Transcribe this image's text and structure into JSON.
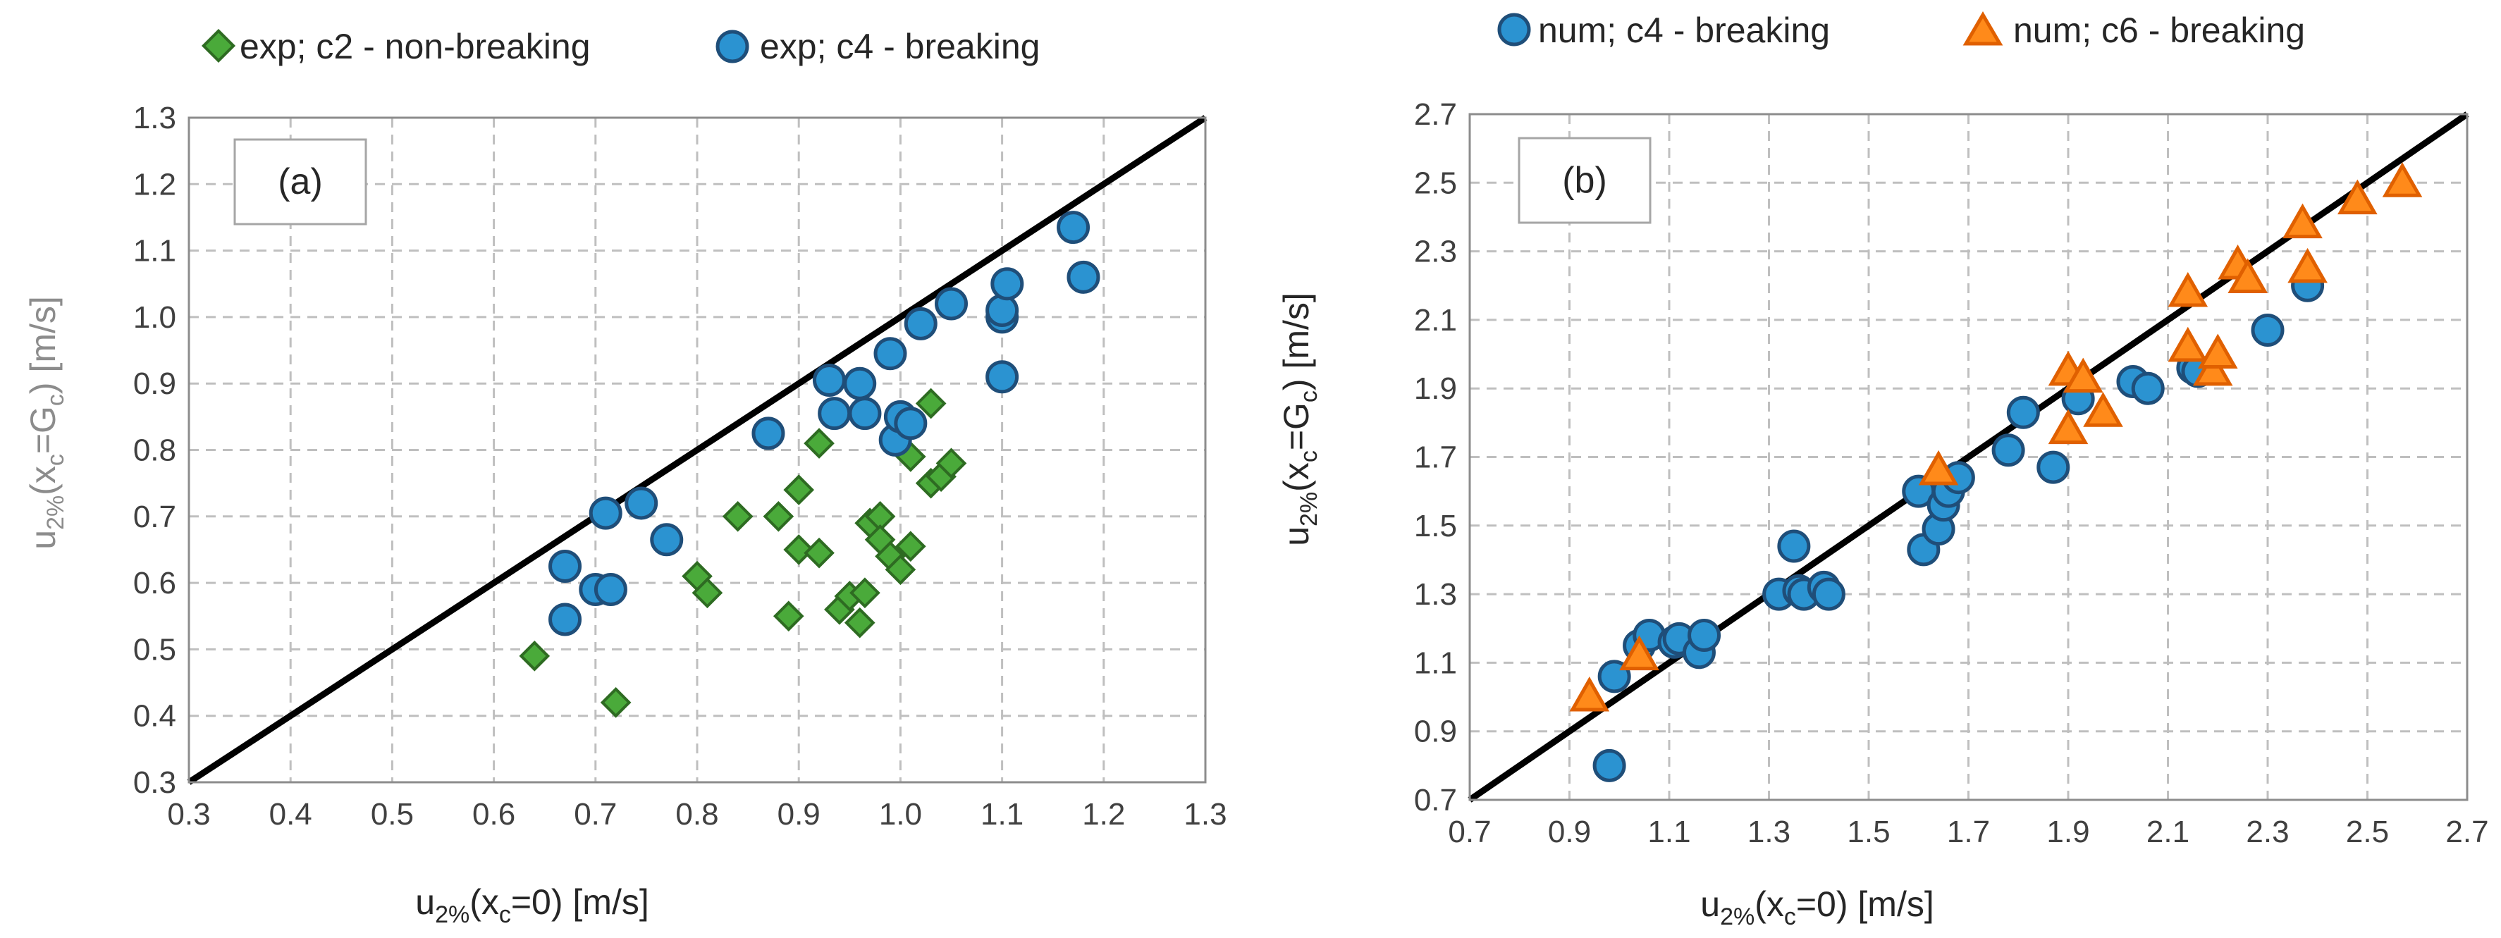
{
  "chart_data": [
    {
      "type": "scatter",
      "panel_label": "(a)",
      "xlabel": {
        "base": "u",
        "sub": "2%",
        "rest": "(x",
        "sub2": "c",
        "tail": "=0)  [m/s]"
      },
      "ylabel": {
        "base": "u",
        "sub": "2%",
        "rest": "(x",
        "sub2": "c",
        "tail": "=G",
        "sub3": "c",
        "end": ")  [m/s]"
      },
      "xlim": [
        0.3,
        1.3
      ],
      "ylim": [
        0.3,
        1.3
      ],
      "xticks": [
        "0.3",
        "0.4",
        "0.5",
        "0.6",
        "0.7",
        "0.8",
        "0.9",
        "1.0",
        "1.1",
        "1.2",
        "1.3"
      ],
      "yticks": [
        "0.3",
        "0.4",
        "0.5",
        "0.6",
        "0.7",
        "0.8",
        "0.9",
        "1.0",
        "1.1",
        "1.2",
        "1.3"
      ],
      "grid": true,
      "reference_line": "y = x",
      "legend_position": "top",
      "series": [
        {
          "name": "exp; c2 - non-breaking",
          "marker": "diamond",
          "color": "#4aaa3a",
          "edge": "#2e6b22",
          "points": [
            [
              0.64,
              0.49
            ],
            [
              0.72,
              0.42
            ],
            [
              0.8,
              0.61
            ],
            [
              0.81,
              0.585
            ],
            [
              0.84,
              0.7
            ],
            [
              0.88,
              0.7
            ],
            [
              0.89,
              0.55
            ],
            [
              0.9,
              0.65
            ],
            [
              0.9,
              0.74
            ],
            [
              0.92,
              0.645
            ],
            [
              0.92,
              0.81
            ],
            [
              0.94,
              0.56
            ],
            [
              0.95,
              0.58
            ],
            [
              0.96,
              0.54
            ],
            [
              0.965,
              0.585
            ],
            [
              0.97,
              0.69
            ],
            [
              0.98,
              0.7
            ],
            [
              0.98,
              0.665
            ],
            [
              0.99,
              0.64
            ],
            [
              1.0,
              0.62
            ],
            [
              1.01,
              0.79
            ],
            [
              1.01,
              0.655
            ],
            [
              1.03,
              0.87
            ],
            [
              1.03,
              0.75
            ],
            [
              1.04,
              0.76
            ],
            [
              1.05,
              0.78
            ]
          ]
        },
        {
          "name": "exp; c4 - breaking",
          "marker": "circle",
          "color": "#2b93d1",
          "edge": "#1f4e79",
          "points": [
            [
              0.67,
              0.625
            ],
            [
              0.67,
              0.545
            ],
            [
              0.7,
              0.59
            ],
            [
              0.71,
              0.705
            ],
            [
              0.715,
              0.59
            ],
            [
              0.745,
              0.72
            ],
            [
              0.77,
              0.665
            ],
            [
              0.87,
              0.825
            ],
            [
              0.93,
              0.905
            ],
            [
              0.935,
              0.855
            ],
            [
              0.96,
              0.9
            ],
            [
              0.965,
              0.855
            ],
            [
              0.99,
              0.945
            ],
            [
              0.995,
              0.815
            ],
            [
              1.0,
              0.85
            ],
            [
              1.01,
              0.84
            ],
            [
              1.02,
              0.99
            ],
            [
              1.05,
              1.02
            ],
            [
              1.1,
              1.0
            ],
            [
              1.1,
              1.01
            ],
            [
              1.1,
              0.91
            ],
            [
              1.105,
              1.05
            ],
            [
              1.17,
              1.135
            ],
            [
              1.18,
              1.06
            ]
          ]
        }
      ]
    },
    {
      "type": "scatter",
      "panel_label": "(b)",
      "xlabel": {
        "base": "u",
        "sub": "2%",
        "rest": "(x",
        "sub2": "c",
        "tail": "=0)  [m/s]"
      },
      "ylabel": {
        "base": "u",
        "sub": "2%",
        "rest": "(x",
        "sub2": "c",
        "tail": "=G",
        "sub3": "c",
        "end": ")  [m/s]"
      },
      "xlim": [
        0.7,
        2.7
      ],
      "ylim": [
        0.7,
        2.7
      ],
      "xticks": [
        "0.7",
        "0.9",
        "1.1",
        "1.3",
        "1.5",
        "1.7",
        "1.9",
        "2.1",
        "2.3",
        "2.5",
        "2.7"
      ],
      "yticks": [
        "0.7",
        "0.9",
        "1.1",
        "1.3",
        "1.5",
        "1.7",
        "1.9",
        "2.1",
        "2.3",
        "2.5",
        "2.7"
      ],
      "grid": true,
      "reference_line": "y = x",
      "legend_position": "top",
      "series": [
        {
          "name": "num; c4 - breaking",
          "marker": "circle",
          "color": "#2b93d1",
          "edge": "#1f4e79",
          "points": [
            [
              0.98,
              0.8
            ],
            [
              0.99,
              1.06
            ],
            [
              1.04,
              1.15
            ],
            [
              1.06,
              1.18
            ],
            [
              1.11,
              1.16
            ],
            [
              1.12,
              1.17
            ],
            [
              1.16,
              1.13
            ],
            [
              1.17,
              1.18
            ],
            [
              1.32,
              1.3
            ],
            [
              1.35,
              1.44
            ],
            [
              1.36,
              1.31
            ],
            [
              1.37,
              1.3
            ],
            [
              1.41,
              1.32
            ],
            [
              1.42,
              1.3
            ],
            [
              1.6,
              1.6
            ],
            [
              1.61,
              1.43
            ],
            [
              1.64,
              1.49
            ],
            [
              1.65,
              1.56
            ],
            [
              1.66,
              1.6
            ],
            [
              1.68,
              1.64
            ],
            [
              1.78,
              1.72
            ],
            [
              1.81,
              1.83
            ],
            [
              1.87,
              1.67
            ],
            [
              1.92,
              1.87
            ],
            [
              2.03,
              1.92
            ],
            [
              2.06,
              1.9
            ],
            [
              2.15,
              1.96
            ],
            [
              2.16,
              1.95
            ],
            [
              2.3,
              2.07
            ],
            [
              2.38,
              2.2
            ]
          ]
        },
        {
          "name": "num; c6 - breaking",
          "marker": "triangle",
          "color": "#ff8a1a",
          "edge": "#e06000",
          "points": [
            [
              0.94,
              1.0
            ],
            [
              1.04,
              1.12
            ],
            [
              1.64,
              1.66
            ],
            [
              1.9,
              1.78
            ],
            [
              1.9,
              1.95
            ],
            [
              1.93,
              1.93
            ],
            [
              1.97,
              1.83
            ],
            [
              2.14,
              2.18
            ],
            [
              2.14,
              2.02
            ],
            [
              2.19,
              1.95
            ],
            [
              2.2,
              2.0
            ],
            [
              2.24,
              2.26
            ],
            [
              2.26,
              2.22
            ],
            [
              2.37,
              2.38
            ],
            [
              2.38,
              2.25
            ],
            [
              2.48,
              2.45
            ],
            [
              2.57,
              2.5
            ]
          ]
        }
      ]
    }
  ]
}
